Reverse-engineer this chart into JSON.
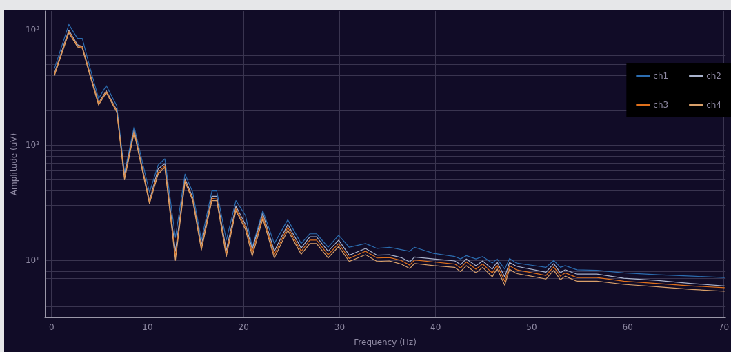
{
  "chart_data": {
    "type": "line",
    "xlabel": "Frequency (Hz)",
    "ylabel": "Amplitude (uV)",
    "log": "y",
    "grid": true,
    "legend": "top right",
    "x": [
      0.3,
      1.8,
      2.7,
      3.2,
      4.0,
      4.9,
      5.7,
      6.8,
      7.6,
      8.6,
      10.2,
      11.1,
      11.8,
      12.9,
      13.9,
      14.7,
      15.6,
      16.7,
      17.2,
      18.2,
      19.2,
      20.2,
      20.9,
      22.0,
      23.2,
      24.6,
      26.0,
      26.9,
      27.6,
      28.8,
      29.9,
      31.0,
      32.7,
      33.9,
      35.2,
      36.4,
      37.3,
      37.8,
      39.8,
      42.0,
      42.6,
      43.2,
      44.2,
      44.9,
      45.9,
      46.4,
      47.2,
      47.7,
      48.4,
      51.5,
      52.3,
      53.0,
      53.5,
      54.7,
      56.8,
      59.6,
      63.2,
      66.7,
      70.1
    ],
    "xlim": [
      -0.7,
      70.2
    ],
    "xticks": [
      0,
      10,
      20,
      30,
      40,
      50,
      60,
      70
    ],
    "ylim": [
      3.2,
      1450
    ],
    "yticks": [
      {
        "value": 4,
        "label": null
      },
      {
        "value": 5,
        "label": null
      },
      {
        "value": 6,
        "label": null
      },
      {
        "value": 7,
        "label": null
      },
      {
        "value": 8,
        "label": null
      },
      {
        "value": 9,
        "label": null
      },
      {
        "value": 10,
        "label": "10¹"
      },
      {
        "value": 20,
        "label": null
      },
      {
        "value": 30,
        "label": null
      },
      {
        "value": 40,
        "label": null
      },
      {
        "value": 50,
        "label": null
      },
      {
        "value": 60,
        "label": null
      },
      {
        "value": 70,
        "label": null
      },
      {
        "value": 80,
        "label": null
      },
      {
        "value": 90,
        "label": null
      },
      {
        "value": 100,
        "label": "10²"
      },
      {
        "value": 200,
        "label": null
      },
      {
        "value": 300,
        "label": null
      },
      {
        "value": 400,
        "label": null
      },
      {
        "value": 500,
        "label": null
      },
      {
        "value": 600,
        "label": null
      },
      {
        "value": 700,
        "label": null
      },
      {
        "value": 800,
        "label": null
      },
      {
        "value": 900,
        "label": null
      },
      {
        "value": 1000,
        "label": "10³"
      }
    ],
    "series": [
      {
        "name": "ch1",
        "color": "#2c6db0",
        "values": [
          460,
          1110,
          840,
          840,
          470,
          253,
          327,
          218,
          58,
          144,
          39,
          67,
          76,
          15.8,
          56,
          39,
          15,
          40,
          40,
          15,
          33,
          24.5,
          13,
          27,
          14,
          22.5,
          14,
          17,
          17,
          13,
          16.5,
          13,
          14,
          12.7,
          13,
          12.4,
          12,
          13,
          11.5,
          10.8,
          10.3,
          11,
          10.3,
          10.8,
          9.5,
          10.3,
          8.4,
          10.4,
          9.5,
          8.7,
          10,
          8.7,
          9.0,
          8.3,
          8.2,
          7.8,
          7.5,
          7.3,
          7.1
        ]
      },
      {
        "name": "ch2",
        "color": "#a9b3cc",
        "values": [
          420,
          990,
          740,
          715,
          420,
          232,
          295,
          200,
          55,
          135,
          33,
          62,
          69,
          12,
          51,
          35,
          13.5,
          36,
          36,
          12.2,
          29.5,
          20.5,
          12.5,
          25.5,
          12,
          20.5,
          12.8,
          16,
          16,
          12,
          15,
          11.1,
          12.7,
          11.1,
          11.2,
          10.6,
          9.7,
          10.7,
          10.3,
          9.9,
          9.2,
          10.3,
          9.0,
          9.9,
          8.4,
          9.7,
          7.2,
          9.6,
          8.9,
          7.9,
          9.4,
          7.8,
          8.3,
          7.6,
          7.6,
          7.0,
          6.7,
          6.3,
          6.0
        ]
      },
      {
        "name": "ch3",
        "color": "#e0711c",
        "values": [
          410,
          960,
          725,
          705,
          410,
          228,
          290,
          196,
          52,
          131,
          32,
          58,
          66,
          10.8,
          49,
          34,
          12.7,
          34.5,
          34,
          11.4,
          28,
          19.4,
          11.7,
          24,
          11.2,
          19.4,
          12,
          15,
          15,
          11.2,
          14,
          10.4,
          12,
          10.5,
          10.6,
          10,
          9.1,
          10.1,
          9.7,
          9.3,
          8.6,
          9.7,
          8.4,
          9.3,
          7.8,
          9.1,
          6.6,
          9.0,
          8.3,
          7.4,
          8.8,
          7.3,
          7.8,
          7.1,
          7.1,
          6.6,
          6.3,
          6.0,
          5.8
        ]
      },
      {
        "name": "ch4",
        "color": "#d9a06a",
        "values": [
          400,
          940,
          710,
          690,
          400,
          222,
          285,
          192,
          50,
          128,
          31,
          56,
          64,
          10,
          48,
          33,
          12.3,
          33,
          33,
          10.8,
          27,
          18.5,
          10.9,
          23,
          10.5,
          18.3,
          11.3,
          14,
          14,
          10.5,
          13.2,
          9.8,
          11.2,
          9.8,
          9.9,
          9.3,
          8.5,
          9.4,
          9.0,
          8.7,
          8.0,
          9.0,
          7.8,
          8.7,
          7.2,
          8.5,
          6.1,
          8.4,
          7.7,
          6.9,
          8.2,
          6.8,
          7.3,
          6.6,
          6.6,
          6.2,
          5.9,
          5.6,
          5.4
        ]
      }
    ]
  }
}
